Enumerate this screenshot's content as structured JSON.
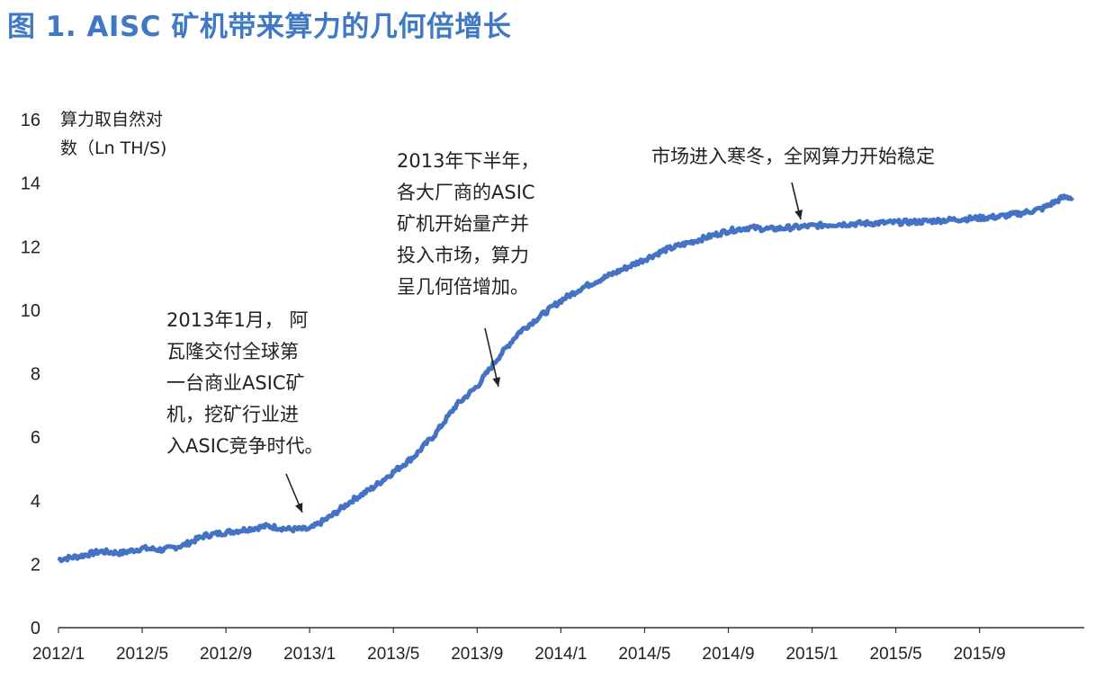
{
  "figure_title": "图 1. AISC 矿机带来算力的几何倍增长",
  "chart_data": {
    "type": "line",
    "title": "图 1. AISC 矿机带来算力的几何倍增长",
    "ylabel_lines": [
      "算力取自然对",
      "数（Ln TH/S)"
    ],
    "ylim": [
      0,
      16
    ],
    "yticks": [
      0,
      2,
      4,
      6,
      8,
      10,
      12,
      14,
      16
    ],
    "xlim": [
      "2012-01",
      "2016-02"
    ],
    "xticks": [
      "2012/1",
      "2012/5",
      "2012/9",
      "2013/1",
      "2013/5",
      "2013/9",
      "2014/1",
      "2014/5",
      "2014/9",
      "2015/1",
      "2015/5",
      "2015/9"
    ],
    "grid": false,
    "legend": "none",
    "color": "#4472c4",
    "series": [
      {
        "x": [
          "2012-01",
          "2012-02",
          "2012-03",
          "2012-04",
          "2012-05",
          "2012-06",
          "2012-07",
          "2012-08",
          "2012-09",
          "2012-10",
          "2012-11",
          "2012-12",
          "2013-01",
          "2013-02",
          "2013-03",
          "2013-04",
          "2013-05",
          "2013-06",
          "2013-07",
          "2013-08",
          "2013-09",
          "2013-10",
          "2013-11",
          "2013-12",
          "2014-01",
          "2014-02",
          "2014-03",
          "2014-04",
          "2014-05",
          "2014-06",
          "2014-07",
          "2014-08",
          "2014-09",
          "2014-10",
          "2014-11",
          "2014-12",
          "2015-01",
          "2015-02",
          "2015-03",
          "2015-04",
          "2015-05",
          "2015-06",
          "2015-07",
          "2015-08",
          "2015-09",
          "2015-10",
          "2015-11",
          "2015-12",
          "2016-01"
        ],
        "values": [
          2.15,
          2.25,
          2.4,
          2.35,
          2.5,
          2.45,
          2.6,
          2.9,
          3.0,
          3.1,
          3.2,
          3.1,
          3.1,
          3.5,
          4.0,
          4.4,
          4.9,
          5.4,
          6.1,
          7.0,
          7.6,
          8.5,
          9.3,
          9.8,
          10.3,
          10.7,
          11.0,
          11.3,
          11.6,
          11.9,
          12.1,
          12.3,
          12.5,
          12.6,
          12.55,
          12.6,
          12.65,
          12.7,
          12.72,
          12.74,
          12.76,
          12.78,
          12.82,
          12.86,
          12.9,
          12.95,
          13.05,
          13.2,
          13.55
        ]
      }
    ],
    "annotations": [
      {
        "lines": [
          "2013年1月， 阿",
          "瓦隆交付全球第",
          "一台商业ASIC矿",
          "机，挖矿行业进",
          "入ASIC竞争时代。"
        ]
      },
      {
        "lines": [
          "2013年下半年，",
          "各大厂商的ASIC",
          "矿机开始量产并",
          "投入市场，算力",
          "呈几何倍增加。"
        ]
      },
      {
        "lines": [
          "市场进入寒冬，全网算力开始稳定"
        ]
      }
    ]
  }
}
